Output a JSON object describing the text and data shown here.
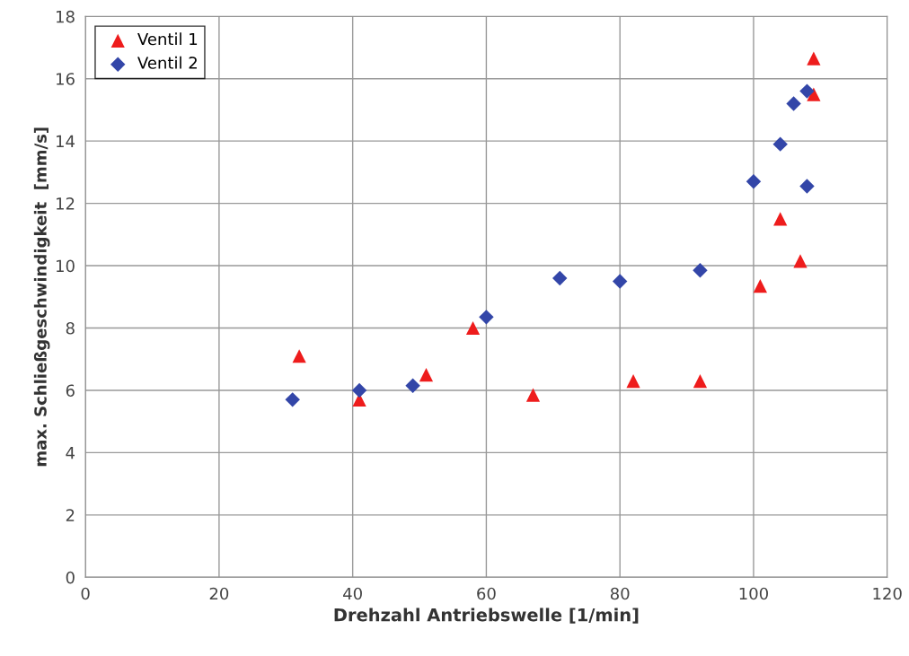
{
  "chart_data": {
    "type": "scatter",
    "xlabel": "Drehzahl Antriebswelle [1/min]",
    "ylabel": "max. Schließgeschwindigkeit  [mm/s]",
    "xlim": [
      0,
      120
    ],
    "xticks": [
      0,
      20,
      40,
      60,
      80,
      100,
      120
    ],
    "ylim": [
      0,
      18
    ],
    "yticks": [
      0,
      2,
      4,
      6,
      8,
      10,
      12,
      14,
      16,
      18
    ],
    "grid": true,
    "legend": "top left",
    "series": [
      {
        "name": "Ventil 1",
        "color": "#ee1c1c",
        "marker": "triangle",
        "x": [
          32,
          41,
          51,
          58,
          67,
          82,
          92,
          101,
          104,
          107,
          109,
          109
        ],
        "values": [
          7.1,
          5.7,
          6.5,
          8.0,
          5.85,
          6.3,
          6.3,
          9.35,
          11.5,
          10.15,
          16.65,
          15.5
        ]
      },
      {
        "name": "Ventil 2",
        "color": "#3346a8",
        "marker": "diamond",
        "x": [
          31,
          41,
          49,
          60,
          71,
          80,
          92,
          100,
          104,
          106,
          108,
          108
        ],
        "values": [
          5.7,
          6.0,
          6.15,
          8.35,
          9.6,
          9.5,
          9.85,
          12.7,
          13.9,
          15.2,
          15.6,
          12.55
        ]
      }
    ]
  }
}
